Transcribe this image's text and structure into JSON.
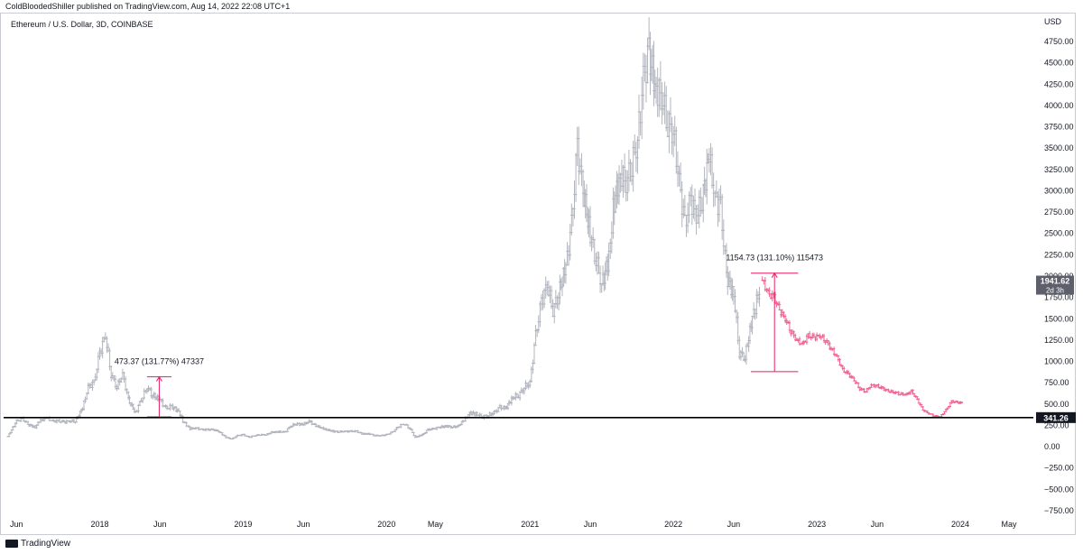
{
  "header": {
    "attribution": "ColdBloodedShiller published on TradingView.com, Aug 14, 2022 22:08 UTC+1"
  },
  "symbol_label": "Ethereum / U.S. Dollar, 3D, COINBASE",
  "footer": {
    "brand": "TradingView"
  },
  "colors": {
    "candle": "#b2b5be",
    "projection": "#f06292",
    "measure": "#e91e63",
    "line": "#000000"
  },
  "chart_data": {
    "type": "candlestick",
    "title": "Ethereum / U.S. Dollar, 3D, COINBASE",
    "currency_label": "USD",
    "ylim": [
      -800,
      4900
    ],
    "y_ticks": [
      4750,
      4500,
      4250,
      4000,
      3750,
      3500,
      3250,
      3000,
      2750,
      2500,
      2250,
      2000,
      1750,
      1500,
      1250,
      1000,
      750,
      500,
      250,
      0,
      -250,
      -500,
      -750
    ],
    "y_tick_labels": [
      "4750.00",
      "4500.00",
      "4250.00",
      "4000.00",
      "3750.00",
      "3500.00",
      "3250.00",
      "3000.00",
      "2750.00",
      "2500.00",
      "2250.00",
      "2000.00",
      "1750.00",
      "1500.00",
      "1250.00",
      "1000.00",
      "750.00",
      "500.00",
      "250.00",
      "0.00",
      "−250.00",
      "−500.00",
      "−750.00"
    ],
    "x_ticks": [
      {
        "label": "Jun",
        "t": 2017.42
      },
      {
        "label": "2018",
        "t": 2018.0
      },
      {
        "label": "Jun",
        "t": 2018.42
      },
      {
        "label": "2019",
        "t": 2019.0
      },
      {
        "label": "Jun",
        "t": 2019.42
      },
      {
        "label": "2020",
        "t": 2020.0
      },
      {
        "label": "May",
        "t": 2020.34
      },
      {
        "label": "2021",
        "t": 2021.0
      },
      {
        "label": "Jun",
        "t": 2021.42
      },
      {
        "label": "2022",
        "t": 2022.0
      },
      {
        "label": "Jun",
        "t": 2022.42
      },
      {
        "label": "2023",
        "t": 2023.0
      },
      {
        "label": "Jun",
        "t": 2023.42
      },
      {
        "label": "2024",
        "t": 2024.0
      },
      {
        "label": "May",
        "t": 2024.34
      }
    ],
    "xlim": [
      2017.36,
      2024.6
    ],
    "history": [
      [
        2017.36,
        120
      ],
      [
        2017.42,
        300
      ],
      [
        2017.46,
        330
      ],
      [
        2017.5,
        260
      ],
      [
        2017.55,
        230
      ],
      [
        2017.58,
        300
      ],
      [
        2017.63,
        340
      ],
      [
        2017.67,
        300
      ],
      [
        2017.71,
        300
      ],
      [
        2017.75,
        290
      ],
      [
        2017.79,
        300
      ],
      [
        2017.83,
        300
      ],
      [
        2017.88,
        450
      ],
      [
        2017.92,
        700
      ],
      [
        2017.96,
        750
      ],
      [
        2018.0,
        1100
      ],
      [
        2018.04,
        1300
      ],
      [
        2018.08,
        850
      ],
      [
        2018.12,
        700
      ],
      [
        2018.16,
        850
      ],
      [
        2018.2,
        550
      ],
      [
        2018.25,
        400
      ],
      [
        2018.29,
        550
      ],
      [
        2018.33,
        700
      ],
      [
        2018.37,
        600
      ],
      [
        2018.42,
        550
      ],
      [
        2018.46,
        450
      ],
      [
        2018.5,
        470
      ],
      [
        2018.55,
        420
      ],
      [
        2018.58,
        300
      ],
      [
        2018.63,
        210
      ],
      [
        2018.67,
        220
      ],
      [
        2018.71,
        200
      ],
      [
        2018.75,
        200
      ],
      [
        2018.79,
        200
      ],
      [
        2018.83,
        180
      ],
      [
        2018.88,
        110
      ],
      [
        2018.92,
        90
      ],
      [
        2018.96,
        130
      ],
      [
        2019.0,
        140
      ],
      [
        2019.04,
        110
      ],
      [
        2019.08,
        130
      ],
      [
        2019.12,
        140
      ],
      [
        2019.16,
        140
      ],
      [
        2019.2,
        170
      ],
      [
        2019.25,
        175
      ],
      [
        2019.29,
        170
      ],
      [
        2019.33,
        240
      ],
      [
        2019.37,
        270
      ],
      [
        2019.42,
        260
      ],
      [
        2019.46,
        300
      ],
      [
        2019.5,
        250
      ],
      [
        2019.55,
        220
      ],
      [
        2019.58,
        200
      ],
      [
        2019.63,
        180
      ],
      [
        2019.67,
        175
      ],
      [
        2019.71,
        180
      ],
      [
        2019.75,
        180
      ],
      [
        2019.79,
        180
      ],
      [
        2019.83,
        150
      ],
      [
        2019.88,
        150
      ],
      [
        2019.92,
        130
      ],
      [
        2019.96,
        130
      ],
      [
        2020.0,
        140
      ],
      [
        2020.04,
        170
      ],
      [
        2020.08,
        230
      ],
      [
        2020.12,
        270
      ],
      [
        2020.16,
        220
      ],
      [
        2020.2,
        110
      ],
      [
        2020.25,
        140
      ],
      [
        2020.29,
        200
      ],
      [
        2020.33,
        210
      ],
      [
        2020.37,
        230
      ],
      [
        2020.42,
        240
      ],
      [
        2020.46,
        230
      ],
      [
        2020.5,
        240
      ],
      [
        2020.55,
        330
      ],
      [
        2020.58,
        400
      ],
      [
        2020.63,
        380
      ],
      [
        2020.67,
        350
      ],
      [
        2020.71,
        370
      ],
      [
        2020.75,
        400
      ],
      [
        2020.79,
        460
      ],
      [
        2020.83,
        450
      ],
      [
        2020.88,
        580
      ],
      [
        2020.92,
        600
      ],
      [
        2020.96,
        700
      ],
      [
        2021.0,
        750
      ],
      [
        2021.04,
        1300
      ],
      [
        2021.08,
        1700
      ],
      [
        2021.12,
        1900
      ],
      [
        2021.16,
        1600
      ],
      [
        2021.2,
        1800
      ],
      [
        2021.25,
        2100
      ],
      [
        2021.29,
        2600
      ],
      [
        2021.33,
        3500
      ],
      [
        2021.37,
        3000
      ],
      [
        2021.42,
        2500
      ],
      [
        2021.46,
        2200
      ],
      [
        2021.5,
        1900
      ],
      [
        2021.55,
        2200
      ],
      [
        2021.58,
        2800
      ],
      [
        2021.63,
        3200
      ],
      [
        2021.67,
        3100
      ],
      [
        2021.71,
        3300
      ],
      [
        2021.75,
        3600
      ],
      [
        2021.79,
        4300
      ],
      [
        2021.83,
        4600
      ],
      [
        2021.88,
        4200
      ],
      [
        2021.92,
        4100
      ],
      [
        2021.96,
        3800
      ],
      [
        2022.0,
        3700
      ],
      [
        2022.04,
        3100
      ],
      [
        2022.08,
        2600
      ],
      [
        2022.12,
        2900
      ],
      [
        2022.16,
        2700
      ],
      [
        2022.2,
        2900
      ],
      [
        2022.25,
        3400
      ],
      [
        2022.29,
        2900
      ],
      [
        2022.33,
        2800
      ],
      [
        2022.37,
        2000
      ],
      [
        2022.42,
        1800
      ],
      [
        2022.46,
        1100
      ],
      [
        2022.5,
        1050
      ],
      [
        2022.55,
        1500
      ],
      [
        2022.58,
        1700
      ],
      [
        2022.61,
        1900
      ]
    ],
    "projection": [
      [
        2022.62,
        1950
      ],
      [
        2022.66,
        1800
      ],
      [
        2022.7,
        1750
      ],
      [
        2022.74,
        1600
      ],
      [
        2022.78,
        1500
      ],
      [
        2022.82,
        1350
      ],
      [
        2022.86,
        1250
      ],
      [
        2022.9,
        1200
      ],
      [
        2022.94,
        1300
      ],
      [
        2022.98,
        1280
      ],
      [
        2023.02,
        1300
      ],
      [
        2023.06,
        1250
      ],
      [
        2023.1,
        1150
      ],
      [
        2023.14,
        1050
      ],
      [
        2023.18,
        900
      ],
      [
        2023.22,
        850
      ],
      [
        2023.26,
        780
      ],
      [
        2023.3,
        680
      ],
      [
        2023.34,
        650
      ],
      [
        2023.38,
        720
      ],
      [
        2023.42,
        710
      ],
      [
        2023.46,
        680
      ],
      [
        2023.5,
        650
      ],
      [
        2023.54,
        640
      ],
      [
        2023.58,
        620
      ],
      [
        2023.62,
        610
      ],
      [
        2023.66,
        650
      ],
      [
        2023.7,
        550
      ],
      [
        2023.74,
        430
      ],
      [
        2023.78,
        390
      ],
      [
        2023.82,
        360
      ],
      [
        2023.86,
        350
      ],
      [
        2023.9,
        430
      ],
      [
        2023.94,
        530
      ],
      [
        2023.98,
        520
      ],
      [
        2024.02,
        510
      ]
    ],
    "horizontal_line": {
      "value": 341.26,
      "label": "341.26"
    },
    "price_marker": {
      "value": 1941.62,
      "label": "1941.62",
      "countdown": "2d 3h"
    },
    "annotations": [
      {
        "label": "473.37 (131.77%) 47337",
        "t_start": 2018.33,
        "t_end": 2018.5,
        "low": 350,
        "high": 820
      },
      {
        "label": "1154.73 (131.10%) 115473",
        "t_start": 2022.54,
        "t_end": 2022.87,
        "low": 880,
        "high": 2035
      }
    ]
  }
}
